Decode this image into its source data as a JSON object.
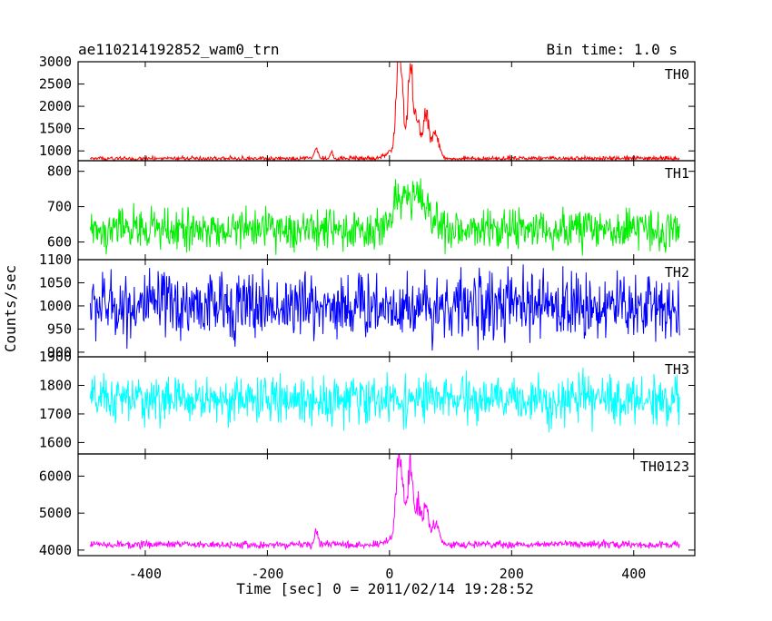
{
  "chart_data": {
    "type": "line",
    "title": "ae110214192852_wam0_trn",
    "subtitle": "Bin time: 1.0 s",
    "xlabel": "Time [sec] 0 = 2011/02/14 19:28:52",
    "ylabel": "Counts/sec",
    "xlim": [
      -510,
      500
    ],
    "xticks": [
      -400,
      -200,
      0,
      200,
      400
    ],
    "x_range": [
      -490,
      475
    ],
    "panels": [
      {
        "name": "TH0",
        "color": "#ff0000",
        "ylim": [
          780,
          3000
        ],
        "yticks": [
          1000,
          1500,
          2000,
          2500,
          3000
        ],
        "baseline": 830,
        "noise": 30,
        "features": [
          {
            "t": -120,
            "amp": 200,
            "w": 3
          },
          {
            "t": -95,
            "amp": 170,
            "w": 2
          },
          {
            "t": 0,
            "amp": 150,
            "w": 8
          },
          {
            "t": 14,
            "amp": 1900,
            "w": 4
          },
          {
            "t": 20,
            "amp": 1200,
            "w": 4
          },
          {
            "t": 34,
            "amp": 2050,
            "w": 4
          },
          {
            "t": 45,
            "amp": 900,
            "w": 5
          },
          {
            "t": 60,
            "amp": 1000,
            "w": 4
          },
          {
            "t": 75,
            "amp": 550,
            "w": 6
          }
        ]
      },
      {
        "name": "TH1",
        "color": "#00ee00",
        "ylim": [
          550,
          830
        ],
        "yticks": [
          600,
          700,
          800
        ],
        "baseline": 635,
        "noise": 35,
        "features": [
          {
            "t": 25,
            "amp": 100,
            "w": 18
          },
          {
            "t": 60,
            "amp": 50,
            "w": 15
          }
        ]
      },
      {
        "name": "TH2",
        "color": "#0000ff",
        "ylim": [
          890,
          1100
        ],
        "yticks": [
          900,
          950,
          1000,
          1050,
          1100
        ],
        "baseline": 1000,
        "noise": 45,
        "features": []
      },
      {
        "name": "TH3",
        "color": "#00ffff",
        "ylim": [
          1560,
          1900
        ],
        "yticks": [
          1600,
          1700,
          1800,
          1900
        ],
        "baseline": 1750,
        "noise": 50,
        "features": []
      },
      {
        "name": "TH0123",
        "color": "#ff00ff",
        "ylim": [
          3850,
          6600
        ],
        "yticks": [
          4000,
          5000,
          6000
        ],
        "baseline": 4150,
        "noise": 60,
        "features": [
          {
            "t": -120,
            "amp": 350,
            "w": 3
          },
          {
            "t": 0,
            "amp": 150,
            "w": 8
          },
          {
            "t": 14,
            "amp": 2200,
            "w": 4
          },
          {
            "t": 22,
            "amp": 1300,
            "w": 4
          },
          {
            "t": 34,
            "amp": 2300,
            "w": 4
          },
          {
            "t": 47,
            "amp": 1100,
            "w": 5
          },
          {
            "t": 60,
            "amp": 1000,
            "w": 4
          },
          {
            "t": 75,
            "amp": 600,
            "w": 6
          }
        ]
      }
    ]
  }
}
